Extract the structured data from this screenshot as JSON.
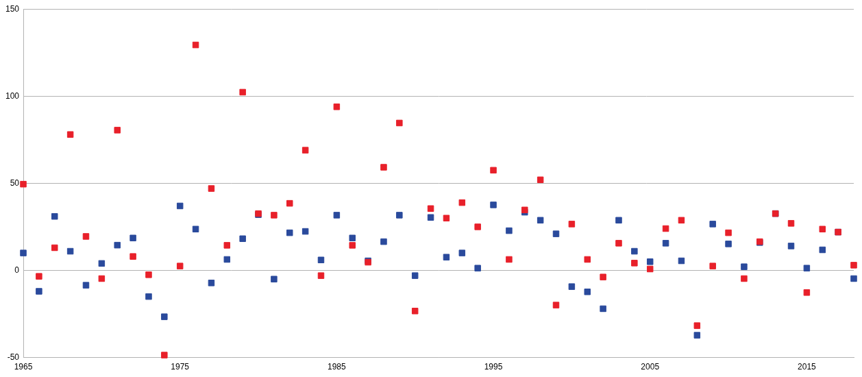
{
  "chart_data": {
    "type": "scatter",
    "marker": "square",
    "grid": "y",
    "x": [
      1965,
      1966,
      1967,
      1968,
      1969,
      1970,
      1971,
      1972,
      1973,
      1974,
      1975,
      1976,
      1977,
      1978,
      1979,
      1980,
      1981,
      1982,
      1983,
      1984,
      1985,
      1986,
      1987,
      1988,
      1989,
      1990,
      1991,
      1992,
      1993,
      1994,
      1995,
      1996,
      1997,
      1998,
      1999,
      2000,
      2001,
      2002,
      2003,
      2004,
      2005,
      2006,
      2007,
      2008,
      2009,
      2010,
      2011,
      2012,
      2013,
      2014,
      2015,
      2016,
      2017,
      2018
    ],
    "xlim": [
      1965,
      2018
    ],
    "xticks": [
      1965,
      1975,
      1985,
      1995,
      2005,
      2015
    ],
    "ylim": [
      -50,
      150
    ],
    "yticks": [
      -50,
      0,
      50,
      100,
      150
    ],
    "series": [
      {
        "color": "#2a4a9c",
        "values": [
          10,
          -12,
          31,
          11,
          -8.5,
          4,
          14.5,
          18.6,
          -15,
          -26.6,
          37,
          23.7,
          -7.2,
          6.3,
          18.2,
          32,
          -5,
          21.6,
          22.4,
          6,
          31.7,
          18.6,
          5.5,
          16.5,
          31.7,
          -3,
          30.4,
          7.6,
          10,
          1.3,
          37.6,
          22.8,
          33.4,
          28.8,
          21,
          -9.3,
          -12.3,
          -22,
          28.8,
          11,
          5,
          15.6,
          5.5,
          -37.2,
          26.6,
          15.2,
          2.1,
          16,
          32.6,
          14,
          1.3,
          11.8,
          22,
          -4.7
        ]
      },
      {
        "color": "#e8202a",
        "values": [
          49.5,
          -3.4,
          13,
          78,
          19.5,
          -4.7,
          80.5,
          8,
          -2.5,
          -48.6,
          2.5,
          129.4,
          47,
          14.4,
          102.3,
          32.6,
          31.7,
          38.5,
          69,
          -3,
          93.9,
          14.4,
          4.7,
          59.2,
          84.6,
          -23.3,
          35.5,
          30,
          38.9,
          25,
          57.5,
          6.3,
          34.7,
          52,
          -19.9,
          26.6,
          6.3,
          -3.8,
          15.6,
          4.2,
          0.8,
          24,
          28.8,
          -31.7,
          2.5,
          21.6,
          -4.7,
          16.5,
          32.6,
          27,
          -12.7,
          23.7,
          22,
          3
        ]
      }
    ]
  }
}
